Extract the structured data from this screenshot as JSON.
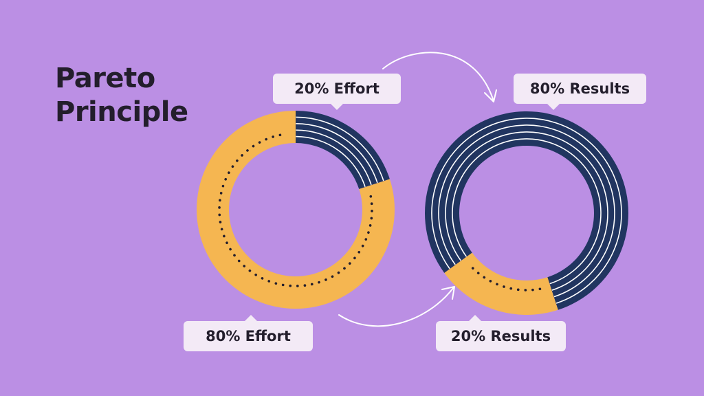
{
  "title_line1": "Pareto",
  "title_line2": "Principle",
  "colors": {
    "background": "#bb8fe4",
    "effort_major": "#f5b651",
    "effort_minor": "#213560",
    "stripe": "#ffffff",
    "dots": "#231e2c",
    "callout": "#f3eaf6",
    "arrow": "#ffffff"
  },
  "chart_data": [
    {
      "type": "pie",
      "name": "Effort",
      "categories": [
        "20% Effort",
        "80% Effort"
      ],
      "values": [
        20,
        80
      ],
      "labels": [
        "20% Effort",
        "80% Effort"
      ]
    },
    {
      "type": "pie",
      "name": "Results",
      "categories": [
        "80% Results",
        "20% Results"
      ],
      "values": [
        80,
        20
      ],
      "labels": [
        "80% Results",
        "20% Results"
      ]
    }
  ]
}
